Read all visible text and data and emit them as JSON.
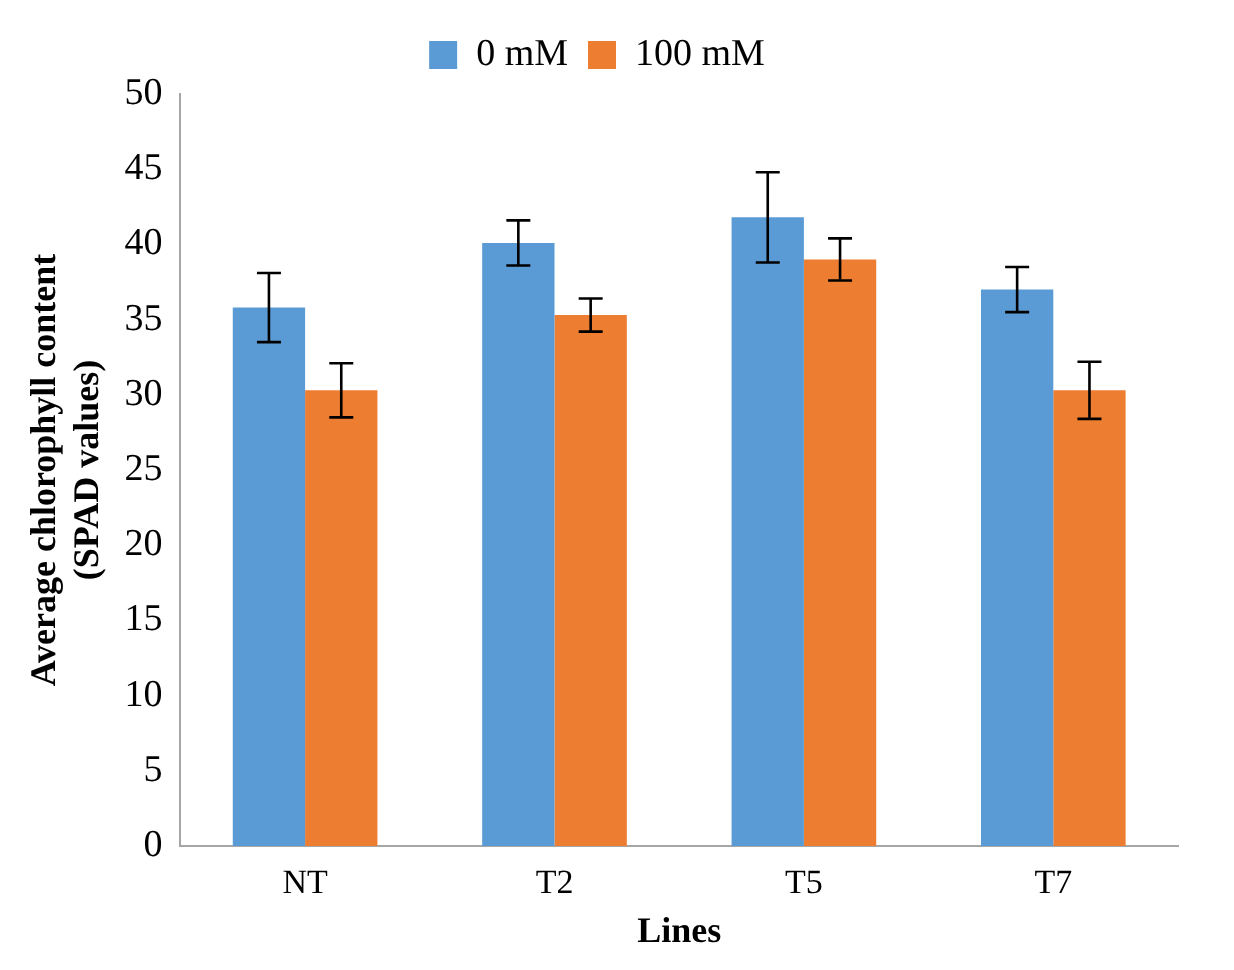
{
  "chart_data": {
    "type": "bar",
    "categories": [
      "NT",
      "T2",
      "T5",
      "T7"
    ],
    "xlabel": "Lines",
    "ylabel": "Average chlorophyll content (SPAD values)",
    "ylim": [
      0,
      50
    ],
    "yticks": [
      0,
      5,
      10,
      15,
      20,
      25,
      30,
      35,
      40,
      45,
      50
    ],
    "grid": false,
    "legend": "top",
    "series": [
      {
        "name": "0 mM",
        "color": "#5b9bd5",
        "values": [
          35.8,
          40.1,
          41.8,
          37.0
        ],
        "errors": [
          2.3,
          1.5,
          3.0,
          1.5
        ]
      },
      {
        "name": "100 mM",
        "color": "#ed7d31",
        "values": [
          30.3,
          35.3,
          39.0,
          30.3
        ],
        "errors": [
          1.8,
          1.1,
          1.4,
          1.9
        ]
      }
    ]
  }
}
